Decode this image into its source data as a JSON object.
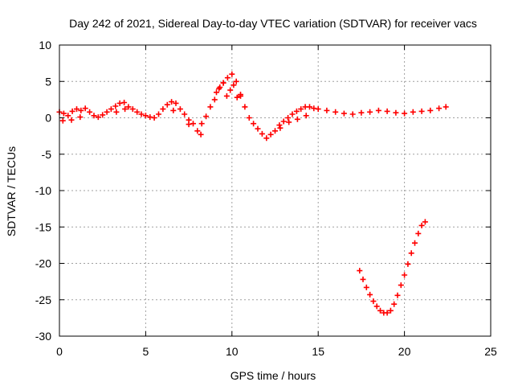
{
  "chart_data": {
    "type": "scatter",
    "title": "Day 242 of 2021, Sidereal Day-to-day VTEC variation (SDTVAR) for receiver vacs",
    "xlabel": "GPS time / hours",
    "ylabel": "SDTVAR / TECUs",
    "xlim": [
      0,
      25
    ],
    "ylim": [
      -30,
      10
    ],
    "xticks": [
      0,
      5,
      10,
      15,
      20,
      25
    ],
    "yticks": [
      10,
      5,
      0,
      -5,
      -10,
      -15,
      -20,
      -25,
      -30
    ],
    "grid": true,
    "marker": "plus",
    "series": [
      {
        "name": "main-trace",
        "color": "#ff0000",
        "x": [
          0.0,
          0.25,
          0.5,
          0.75,
          1.0,
          1.25,
          1.5,
          1.75,
          2.0,
          2.25,
          2.5,
          2.75,
          3.0,
          3.25,
          3.5,
          3.75,
          4.0,
          4.25,
          4.5,
          4.75,
          5.0,
          5.25,
          5.5,
          5.75,
          6.0,
          6.25,
          6.5,
          6.75,
          7.0,
          7.25,
          7.5,
          7.75,
          8.0,
          8.25,
          8.5,
          8.75,
          9.0,
          9.25,
          9.5,
          9.75,
          10.0,
          10.25,
          10.5,
          10.75,
          11.0,
          11.25,
          11.5,
          11.75,
          12.0,
          12.25,
          12.5,
          12.75,
          13.0,
          13.25,
          13.5,
          13.75,
          14.0,
          14.25,
          14.5,
          14.75,
          15.0,
          15.5,
          16.0,
          16.5,
          17.0,
          17.5,
          18.0,
          18.5,
          19.0,
          19.5,
          20.0,
          20.5,
          21.0,
          21.5,
          22.0,
          22.4
        ],
        "y": [
          0.8,
          0.6,
          0.3,
          0.9,
          1.2,
          1.0,
          1.3,
          0.8,
          0.3,
          0.1,
          0.4,
          0.8,
          1.2,
          1.6,
          2.0,
          2.1,
          1.5,
          1.2,
          0.8,
          0.5,
          0.3,
          0.1,
          0.0,
          0.5,
          1.2,
          1.8,
          2.2,
          2.0,
          1.2,
          0.5,
          -0.3,
          -0.8,
          -1.8,
          -0.8,
          0.2,
          1.5,
          2.5,
          4.0,
          4.8,
          5.5,
          6.0,
          5.0,
          3.0,
          1.5,
          0.0,
          -0.8,
          -1.5,
          -2.2,
          -2.8,
          -2.3,
          -1.8,
          -1.0,
          -0.5,
          0.0,
          0.5,
          0.9,
          1.2,
          1.5,
          1.5,
          1.3,
          1.2,
          1.0,
          0.8,
          0.6,
          0.5,
          0.7,
          0.8,
          1.0,
          0.9,
          0.7,
          0.6,
          0.8,
          0.9,
          1.0,
          1.3,
          1.5
        ]
      },
      {
        "name": "secondary-band",
        "color": "#ff0000",
        "x": [
          0.2,
          0.7,
          1.2,
          3.3,
          3.8,
          6.6,
          7.5,
          8.2,
          12.8,
          13.3,
          13.8,
          14.3
        ],
        "y": [
          -0.4,
          -0.3,
          0.1,
          0.8,
          1.2,
          1.0,
          -0.9,
          -2.3,
          -1.4,
          -0.6,
          -0.2,
          0.3
        ]
      },
      {
        "name": "scattered-crosses",
        "color": "#ff0000",
        "x": [
          9.1,
          9.3,
          9.5,
          9.7,
          9.9,
          10.1,
          10.3,
          10.5
        ],
        "y": [
          3.5,
          4.2,
          4.8,
          3.0,
          3.8,
          4.5,
          2.8,
          3.2
        ]
      },
      {
        "name": "lower-v-trace",
        "color": "#ff0000",
        "x": [
          17.4,
          17.6,
          17.8,
          18.0,
          18.2,
          18.4,
          18.6,
          18.8,
          19.0,
          19.2,
          19.4,
          19.6,
          19.8,
          20.0,
          20.2,
          20.4,
          20.6,
          20.8,
          21.0,
          21.2
        ],
        "y": [
          -21.0,
          -22.2,
          -23.3,
          -24.3,
          -25.2,
          -25.9,
          -26.5,
          -26.8,
          -26.8,
          -26.5,
          -25.6,
          -24.4,
          -23.0,
          -21.6,
          -20.1,
          -18.6,
          -17.2,
          -15.9,
          -14.8,
          -14.3
        ]
      }
    ]
  }
}
